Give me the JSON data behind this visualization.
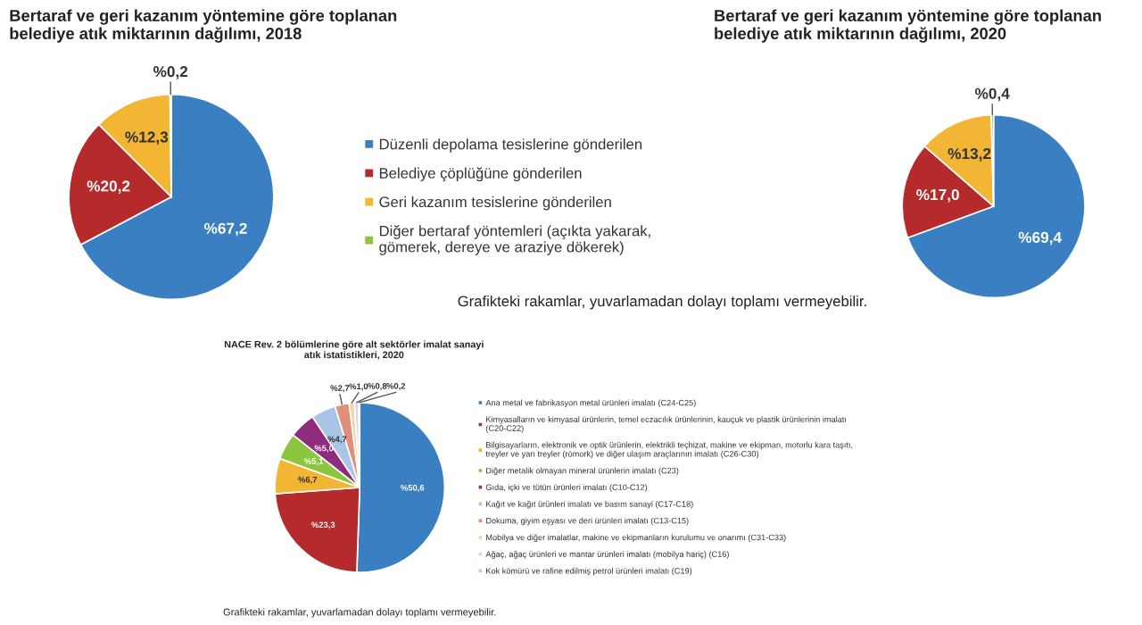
{
  "chart_data": [
    {
      "type": "pie",
      "title": "Bertaraf ve geri kazanım yöntemine göre toplanan belediye atık miktarının dağılımı, 2018",
      "categories": [
        "Düzenli depolama tesislerine gönderilen",
        "Belediye çöplüğüne gönderilen",
        "Geri kazanım tesislerine gönderilen",
        "Diğer bertaraf yöntemleri (açıkta yakarak, gömerek, dereye ve araziye dökerek)"
      ],
      "values": [
        67.2,
        20.2,
        12.3,
        0.2
      ],
      "value_labels": [
        "%67,2",
        "%20,2",
        "%12,3",
        "%0,2"
      ],
      "colors": [
        "#3a7fc1",
        "#b52a2a",
        "#f2b534",
        "#8cc63f"
      ],
      "legend": "right",
      "annotations": [
        "Grafikteki rakamlar, yuvarlamadan dolayı toplamı vermeyebilir."
      ]
    },
    {
      "type": "pie",
      "title": "Bertaraf ve geri kazanım yöntemine göre toplanan belediye atık miktarının dağılımı, 2020",
      "categories": [
        null,
        null,
        null,
        null
      ],
      "values": [
        69.4,
        17.0,
        13.2,
        0.4
      ],
      "value_labels": [
        "%69,4",
        "%17,0",
        "%13,2",
        "%0,4"
      ],
      "colors": [
        "#3a7fc1",
        "#b52a2a",
        "#f2b534",
        "#8cc63f"
      ]
    },
    {
      "type": "pie",
      "title": "NACE Rev. 2 bölümlerine göre alt sektörler imalat sanayi atık istatistikleri, 2020",
      "categories": [
        "Ana metal ve fabrikasyon metal ürünleri imalatı (C24-C25)",
        "Kimyasalların ve kimyasal ürünlerin, temel eczacılık ürünlerinin, kauçuk ve plastik ürünlerinin imalatı (C20-C22)",
        "Bilgisayarların, elektronik ve optik ürünlerin, elektrikli teçhizat, makine ve ekipman, motorlu kara taşıtı, treyler ve yarı treyler (römork) ve diğer ulaşım araçlarının imalatı (C26-C30)",
        "Diğer metalik olmayan mineral ürünlerin imalatı (C23)",
        "Gıda, içki ve tütün ürünleri imalatı (C10-C12)",
        "Kağıt ve kağıt ürünleri imalatı ve basım sanayi (C17-C18)",
        "Dokuma, giyim eşyası ve deri ürünleri imalatı (C13-C15)",
        "Mobilya ve diğer imalatlar, makine ve ekipmanların kurulumu ve onarımı (C31-C33)",
        "Ağaç, ağaç ürünleri ve mantar ürünleri imalatı (mobilya hariç) (C16)",
        "Kok kömürü ve rafine edilmiş petrol ürünleri imalatı (C19)"
      ],
      "values": [
        50.6,
        23.3,
        6.7,
        5.1,
        5.0,
        4.7,
        2.7,
        1.0,
        0.8,
        0.2
      ],
      "value_labels": [
        "%50,6",
        "%23,3",
        "%6,7",
        "%5,1",
        "%5,0",
        "%4,7",
        "%2,7",
        "%1,0",
        "%0,8",
        "%0,2"
      ],
      "colors": [
        "#3a7fc1",
        "#b52a2a",
        "#f2b534",
        "#8cc63f",
        "#8e2c7e",
        "#a9c4e4",
        "#e0907a",
        "#f5d5a8",
        "#c9daf0",
        "#f0c0b0"
      ],
      "legend": "right",
      "annotations": [
        "Grafikteki rakamlar, yuvarlamadan dolayı toplamı vermeyebilir."
      ]
    }
  ]
}
